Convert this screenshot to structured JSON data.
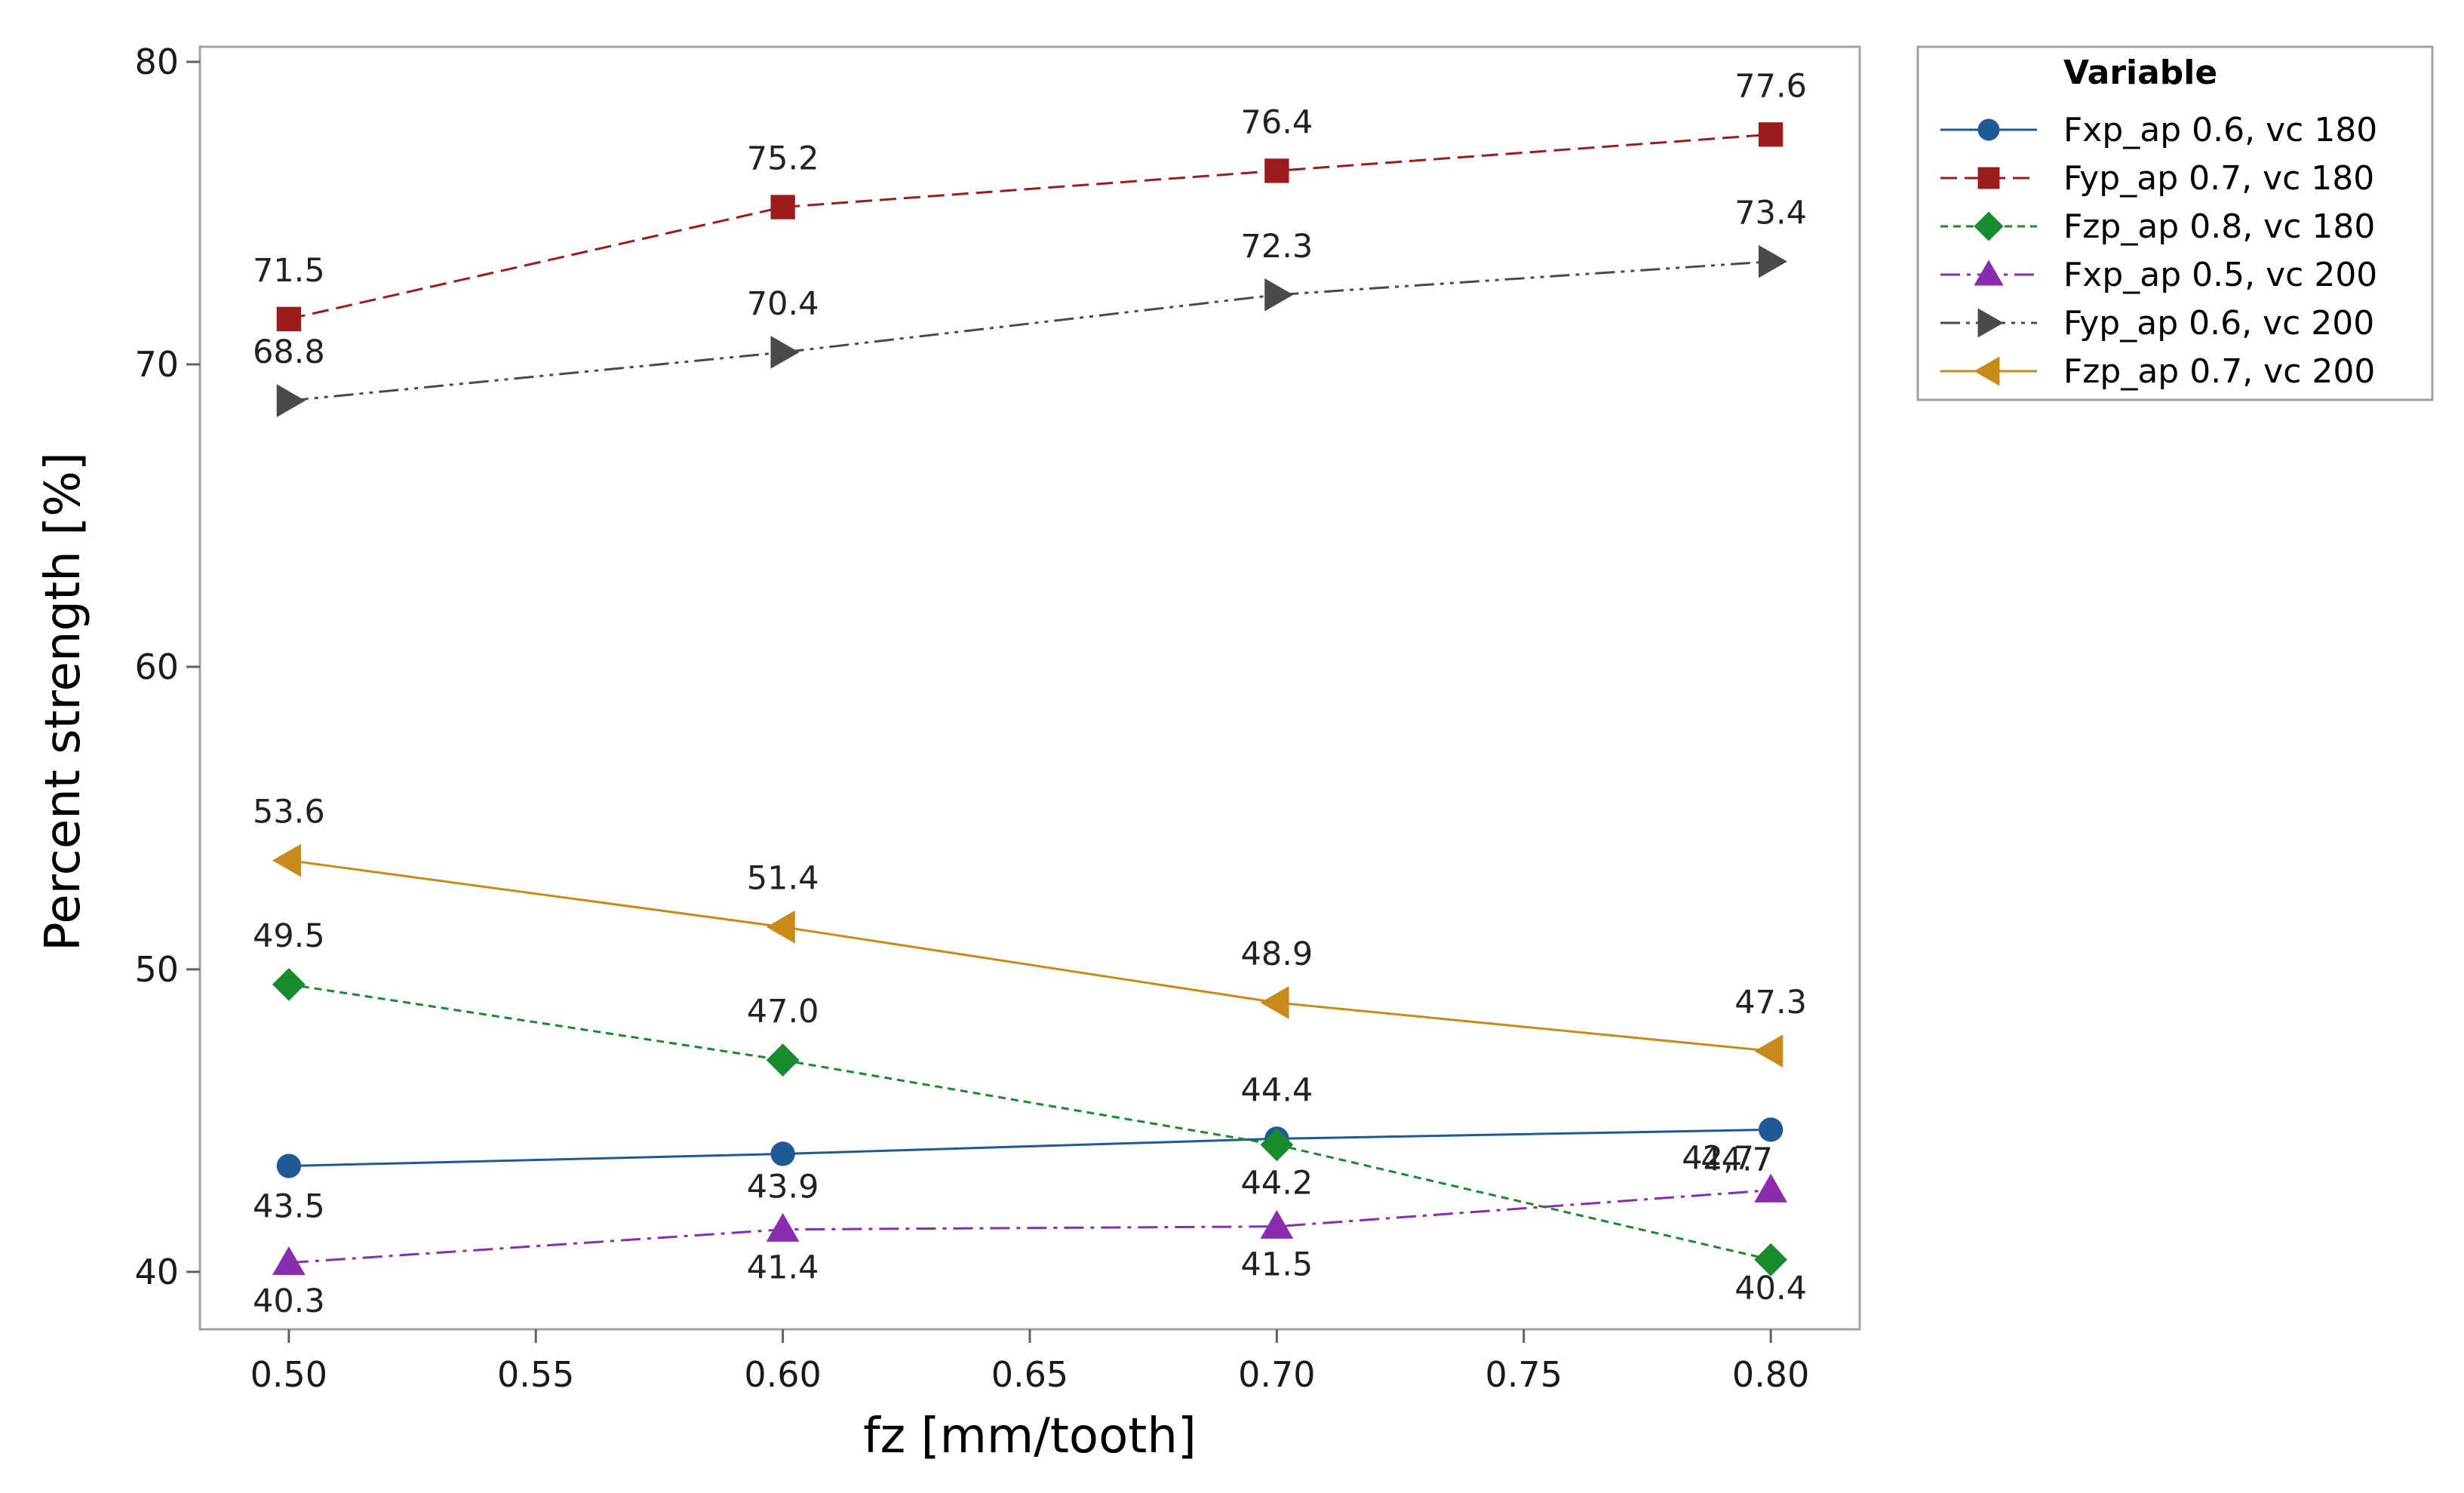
{
  "chart_data": {
    "type": "line",
    "title": "",
    "xlabel": "fz [mm/tooth]",
    "ylabel": "Percent strength [%]",
    "x": [
      0.5,
      0.6,
      0.7,
      0.8
    ],
    "xlim": [
      0.482,
      0.818
    ],
    "ylim": [
      38.1,
      80.5
    ],
    "xticks": [
      "0.50",
      "0.55",
      "0.60",
      "0.65",
      "0.70",
      "0.75",
      "0.80"
    ],
    "yticks": [
      "40",
      "50",
      "60",
      "70",
      "80"
    ],
    "legend": {
      "title": "Variable",
      "position": "right"
    },
    "series": [
      {
        "name": "Fxp_ap 0.6, vc 180",
        "values": [
          43.5,
          43.9,
          44.4,
          44.7
        ],
        "labels": [
          "43.5",
          "43.9",
          "44.4",
          "44.7"
        ],
        "color": "#1f5a96",
        "marker": "circle",
        "line": "solid"
      },
      {
        "name": "Fyp_ap 0.7, vc 180",
        "values": [
          71.5,
          75.2,
          76.4,
          77.6
        ],
        "labels": [
          "71.5",
          "75.2",
          "76.4",
          "77.6"
        ],
        "color": "#9c1c1c",
        "marker": "square",
        "line": "dash"
      },
      {
        "name": "Fzp_ap 0.8, vc 180",
        "values": [
          49.5,
          47.0,
          44.2,
          40.4
        ],
        "labels": [
          "49.5",
          "47.0",
          "44.2",
          "40.4"
        ],
        "color": "#1a8a2f",
        "marker": "diamond",
        "line": "shortdash"
      },
      {
        "name": "Fxp_ap 0.5, vc 200",
        "values": [
          40.3,
          41.4,
          41.5,
          42.7
        ],
        "labels": [
          "40.3",
          "41.4",
          "41.5",
          "42,7"
        ],
        "color": "#8a2cae",
        "marker": "triangle-up",
        "line": "dashdot"
      },
      {
        "name": "Fyp_ap 0.6, vc 200",
        "values": [
          68.8,
          70.4,
          72.3,
          73.4
        ],
        "labels": [
          "68.8",
          "70.4",
          "72.3",
          "73.4"
        ],
        "color": "#4a4a4a",
        "marker": "triangle-right",
        "line": "dashdotdot"
      },
      {
        "name": "Fzp_ap 0.7, vc 200",
        "values": [
          53.6,
          51.4,
          48.9,
          47.3
        ],
        "labels": [
          "53.6",
          "51.4",
          "48.9",
          "47.3"
        ],
        "color": "#c88a1a",
        "marker": "triangle-left",
        "line": "solid"
      }
    ]
  }
}
